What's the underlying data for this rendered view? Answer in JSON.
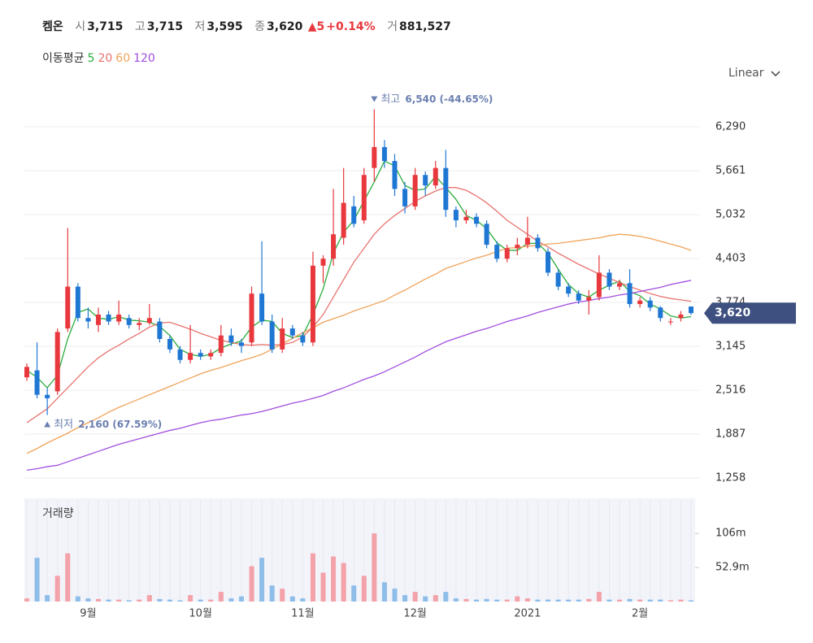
{
  "header": {
    "name": "켐온",
    "open_label": "시",
    "open": "3,715",
    "high_label": "고",
    "high": "3,715",
    "low_label": "저",
    "low": "3,595",
    "close_label": "종",
    "close": "3,620",
    "change": "▲5",
    "change_pct": "+0.14%",
    "volume_label": "거",
    "volume": "881,527"
  },
  "legend_title": "이동평균",
  "scale_mode": "Linear",
  "volume_title": "거래량",
  "chart_data": {
    "type": "candlestick",
    "categories": [
      null,
      null,
      null,
      null,
      null,
      null,
      "9월",
      null,
      null,
      null,
      null,
      null,
      null,
      null,
      null,
      null,
      null,
      "10월",
      null,
      null,
      null,
      null,
      null,
      null,
      null,
      null,
      null,
      "11월",
      null,
      null,
      null,
      null,
      null,
      null,
      null,
      null,
      null,
      null,
      "12월",
      null,
      null,
      null,
      null,
      null,
      null,
      null,
      null,
      null,
      null,
      "2021",
      null,
      null,
      null,
      null,
      null,
      null,
      null,
      null,
      null,
      null,
      "2월",
      null,
      null,
      null,
      null,
      null
    ],
    "open": [
      2700,
      2800,
      2450,
      2500,
      3400,
      4000,
      3550,
      3450,
      3600,
      3500,
      3550,
      3450,
      3480,
      3500,
      3250,
      3100,
      2950,
      3050,
      3000,
      3050,
      3300,
      3200,
      3200,
      3900,
      3500,
      3100,
      3400,
      3300,
      3200,
      4300,
      4400,
      4700,
      5150,
      4950,
      5700,
      6000,
      5800,
      5400,
      5150,
      5600,
      5450,
      5700,
      5100,
      4950,
      5000,
      4900,
      4600,
      4400,
      4550,
      4600,
      4700,
      4500,
      4200,
      4000,
      3900,
      3800,
      3850,
      4200,
      4000,
      4050,
      3750,
      3800,
      3700,
      3500,
      3550,
      3715
    ],
    "high": [
      2900,
      3200,
      2550,
      3400,
      4840,
      4050,
      3700,
      3700,
      3650,
      3800,
      3600,
      3550,
      3750,
      3550,
      3300,
      3150,
      3450,
      3100,
      3100,
      3450,
      3400,
      3250,
      4000,
      4650,
      3600,
      3550,
      3450,
      3350,
      4500,
      4450,
      5400,
      5700,
      5300,
      5700,
      6540,
      6100,
      5900,
      5500,
      5700,
      5650,
      5800,
      5960,
      5150,
      5100,
      5050,
      4950,
      4650,
      4600,
      4700,
      5000,
      4750,
      4550,
      4250,
      4050,
      3950,
      3950,
      4450,
      4250,
      4100,
      4250,
      3850,
      3850,
      3720,
      3550,
      3650,
      3715
    ],
    "low": [
      2650,
      2400,
      2160,
      2450,
      3350,
      3500,
      3400,
      3350,
      3450,
      3450,
      3400,
      3380,
      3450,
      3200,
      3050,
      2900,
      2900,
      2950,
      2950,
      3000,
      3150,
      3050,
      3150,
      3450,
      3050,
      3050,
      3250,
      3150,
      3150,
      4050,
      4300,
      4600,
      4850,
      4900,
      5500,
      5700,
      5300,
      5050,
      5100,
      5300,
      5400,
      5000,
      4850,
      4900,
      4850,
      4550,
      4350,
      4350,
      4450,
      4550,
      4500,
      4150,
      3950,
      3850,
      3750,
      3600,
      3800,
      3950,
      3950,
      3700,
      3700,
      3650,
      3500,
      3450,
      3500,
      3595
    ],
    "close": [
      2850,
      2450,
      2400,
      3350,
      4000,
      3550,
      3500,
      3600,
      3500,
      3600,
      3450,
      3480,
      3550,
      3250,
      3100,
      2950,
      3050,
      3000,
      3050,
      3300,
      3200,
      3150,
      3900,
      3500,
      3100,
      3400,
      3300,
      3200,
      4300,
      4400,
      4750,
      5200,
      4900,
      5600,
      6000,
      5800,
      5400,
      5150,
      5600,
      5450,
      5700,
      5100,
      4950,
      5000,
      4900,
      4600,
      4400,
      4550,
      4600,
      4700,
      4550,
      4200,
      4000,
      3900,
      3800,
      3850,
      4200,
      4000,
      4050,
      3750,
      3800,
      3700,
      3550,
      3500,
      3600,
      3620
    ],
    "volume": [
      5,
      68,
      10,
      40,
      75,
      8,
      5,
      4,
      3,
      3,
      2,
      3,
      10,
      4,
      3,
      2,
      10,
      3,
      3,
      15,
      5,
      8,
      55,
      68,
      25,
      20,
      8,
      5,
      75,
      45,
      70,
      60,
      25,
      40,
      106,
      30,
      20,
      10,
      15,
      8,
      10,
      15,
      5,
      4,
      3,
      4,
      3,
      3,
      8,
      5,
      3,
      3,
      3,
      3,
      3,
      4,
      15,
      3,
      3,
      4,
      3,
      3,
      3,
      2,
      3,
      2
    ],
    "up_color": "#e8383d",
    "down_color": "#1f77d4",
    "volume_up_color": "#f2a2a8",
    "volume_down_color": "#8ebde9",
    "series": [
      {
        "name": "5",
        "color": "#2aad3c",
        "values": [
          2800,
          2700,
          2550,
          2730,
          3250,
          3630,
          3680,
          3550,
          3530,
          3570,
          3520,
          3510,
          3490,
          3430,
          3300,
          3100,
          3030,
          3000,
          3030,
          3120,
          3180,
          3220,
          3420,
          3520,
          3500,
          3330,
          3270,
          3300,
          3600,
          3970,
          4480,
          4780,
          4950,
          5230,
          5500,
          5800,
          5730,
          5450,
          5380,
          5400,
          5580,
          5420,
          5250,
          5020,
          4950,
          4830,
          4630,
          4520,
          4520,
          4620,
          4620,
          4480,
          4250,
          4030,
          3900,
          3850,
          3950,
          4020,
          4080,
          3930,
          3870,
          3750,
          3680,
          3580,
          3550,
          3570
        ]
      },
      {
        "name": "20",
        "color": "#e8746f",
        "values": [
          2050,
          2150,
          2250,
          2400,
          2550,
          2700,
          2850,
          2980,
          3080,
          3160,
          3250,
          3330,
          3420,
          3480,
          3490,
          3440,
          3390,
          3330,
          3280,
          3230,
          3200,
          3170,
          3160,
          3170,
          3160,
          3170,
          3200,
          3280,
          3420,
          3600,
          3850,
          4100,
          4350,
          4550,
          4750,
          4900,
          5020,
          5120,
          5220,
          5300,
          5370,
          5420,
          5420,
          5380,
          5300,
          5200,
          5080,
          4950,
          4850,
          4750,
          4650,
          4570,
          4480,
          4400,
          4320,
          4250,
          4180,
          4120,
          4060,
          4000,
          3950,
          3900,
          3860,
          3830,
          3810,
          3790
        ]
      },
      {
        "name": "60",
        "color": "#f0a35a",
        "values": [
          1610,
          1680,
          1760,
          1830,
          1900,
          1980,
          2050,
          2120,
          2200,
          2270,
          2330,
          2390,
          2450,
          2510,
          2570,
          2630,
          2690,
          2750,
          2800,
          2840,
          2890,
          2940,
          2980,
          3030,
          3100,
          3180,
          3260,
          3340,
          3410,
          3490,
          3540,
          3590,
          3650,
          3700,
          3750,
          3800,
          3880,
          3950,
          4030,
          4110,
          4180,
          4260,
          4310,
          4360,
          4410,
          4450,
          4500,
          4550,
          4560,
          4580,
          4590,
          4610,
          4620,
          4640,
          4660,
          4680,
          4700,
          4730,
          4750,
          4740,
          4720,
          4690,
          4650,
          4610,
          4570,
          4520
        ]
      },
      {
        "name": "120",
        "color": "#a14ee0",
        "values": [
          1370,
          1390,
          1420,
          1440,
          1490,
          1540,
          1590,
          1640,
          1690,
          1740,
          1780,
          1820,
          1860,
          1900,
          1940,
          1970,
          2010,
          2050,
          2080,
          2100,
          2130,
          2160,
          2180,
          2210,
          2250,
          2290,
          2330,
          2360,
          2400,
          2440,
          2500,
          2550,
          2610,
          2670,
          2720,
          2780,
          2850,
          2920,
          2990,
          3070,
          3140,
          3210,
          3260,
          3310,
          3360,
          3400,
          3450,
          3500,
          3540,
          3580,
          3630,
          3670,
          3710,
          3750,
          3780,
          3800,
          3830,
          3850,
          3880,
          3900,
          3930,
          3960,
          3990,
          4030,
          4060,
          4090
        ]
      }
    ],
    "ylim": [
      1118,
      6593
    ],
    "yticks": [
      {
        "value": 1258,
        "label": "1,258"
      },
      {
        "value": 1887,
        "label": "1,887"
      },
      {
        "value": 2516,
        "label": "2,516"
      },
      {
        "value": 3145,
        "label": "3,145"
      },
      {
        "value": 3774,
        "label": "3,774"
      },
      {
        "value": 4403,
        "label": "4,403"
      },
      {
        "value": 5032,
        "label": "5,032"
      },
      {
        "value": 5661,
        "label": "5,661"
      },
      {
        "value": 6290,
        "label": "6,290"
      }
    ],
    "volume_ylim": [
      0,
      158
    ],
    "volume_yticks": [
      {
        "value": 52.9,
        "label": "52.9m"
      },
      {
        "value": 106,
        "label": "106m"
      }
    ],
    "grid": true,
    "current_price": {
      "value": 3620,
      "label": "3,620"
    },
    "annotations": [
      {
        "label": "최고",
        "value": 6540,
        "text": "6,540 (-44.65%)"
      },
      {
        "label": "최저",
        "value": 2160,
        "text": "2,160 (67.59%)"
      }
    ]
  }
}
